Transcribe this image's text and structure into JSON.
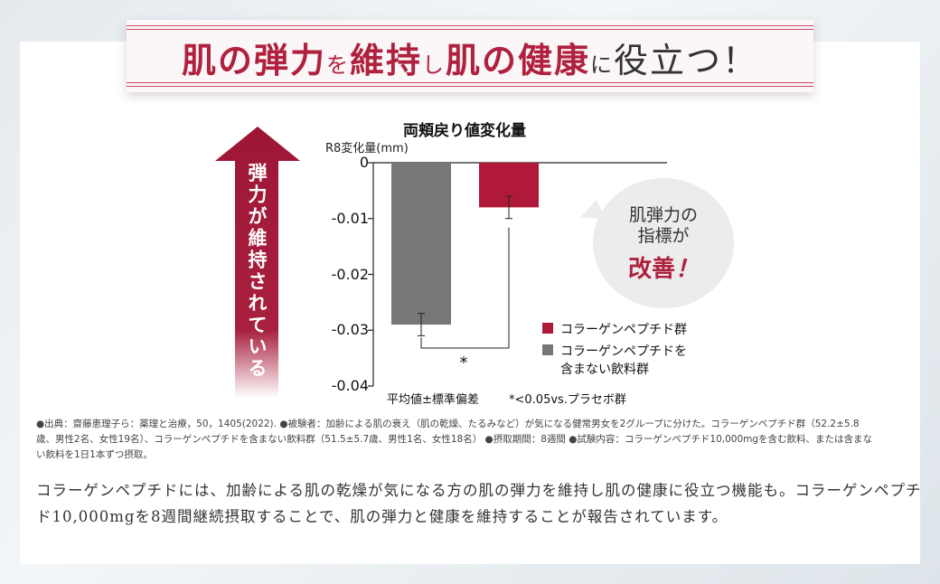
{
  "banner": {
    "p1": "肌の弾力",
    "p2": "を",
    "p3": "維持",
    "p4": "し",
    "p5": "肌の健康",
    "p6": "に",
    "p7": "役立つ！"
  },
  "arrow_text": "弾力が維持されている",
  "bubble": {
    "line1": "肌弾力の",
    "line2": "指標が",
    "line3": "改善",
    "line3_mark": "！"
  },
  "chart_data": {
    "type": "bar",
    "title": "両頬戻り値変化量",
    "ylabel": "R8変化量(mm)",
    "ylim": [
      -0.04,
      0
    ],
    "yticks": [
      "0",
      "-0.01",
      "-0.02",
      "-0.03",
      "-0.04"
    ],
    "categories": [
      "コラーゲンペプチドを含まない飲料群",
      "コラーゲンペプチド群"
    ],
    "series": [
      {
        "name": "コラーゲンペプチドを含まない飲料群",
        "values": [
          -0.029,
          null
        ],
        "error": [
          0.002,
          null
        ],
        "color": "#777777"
      },
      {
        "name": "コラーゲンペプチド群",
        "values": [
          null,
          -0.008
        ],
        "error": [
          null,
          0.002
        ],
        "color": "#b0193a"
      }
    ],
    "legend": [
      {
        "label_1": "コラーゲンペプチド群",
        "label_2": "",
        "color": "#b0193a"
      },
      {
        "label_1": "コラーゲンペプチドを",
        "label_2": "含まない飲料群",
        "color": "#777777"
      }
    ],
    "significance": "*",
    "note_left": "平均値±標準偏差",
    "note_right": "*<0.05vs.プラセボ群",
    "legend_position": "bottom-right",
    "grid": false
  },
  "footnote": "●出典：齋藤恵理子ら：薬理と治療，50，1405(2022). ●被験者：加齢による肌の衰え（肌の乾燥、たるみなど）が気になる健常男女を2グループに分けた。コラーゲンペプチド群（52.2±5.8歳、男性2名、女性19名）、コラーゲンペプチドを含まない飲料群（51.5±5.7歳、男性1名、女性18名） ●摂取期間：8週間 ●試験内容：コラーゲンペプチド10,000mgを含む飲料、または含まない飲料を1日1本ずつ摂取。",
  "body_text": "コラーゲンペプチドには、加齢による肌の乾燥が気になる方の肌の弾力を維持し肌の健康に役立つ機能も。コラーゲンペプチド10,000mgを8週間継続摂取することで、肌の弾力と健康を維持することが報告されています。"
}
